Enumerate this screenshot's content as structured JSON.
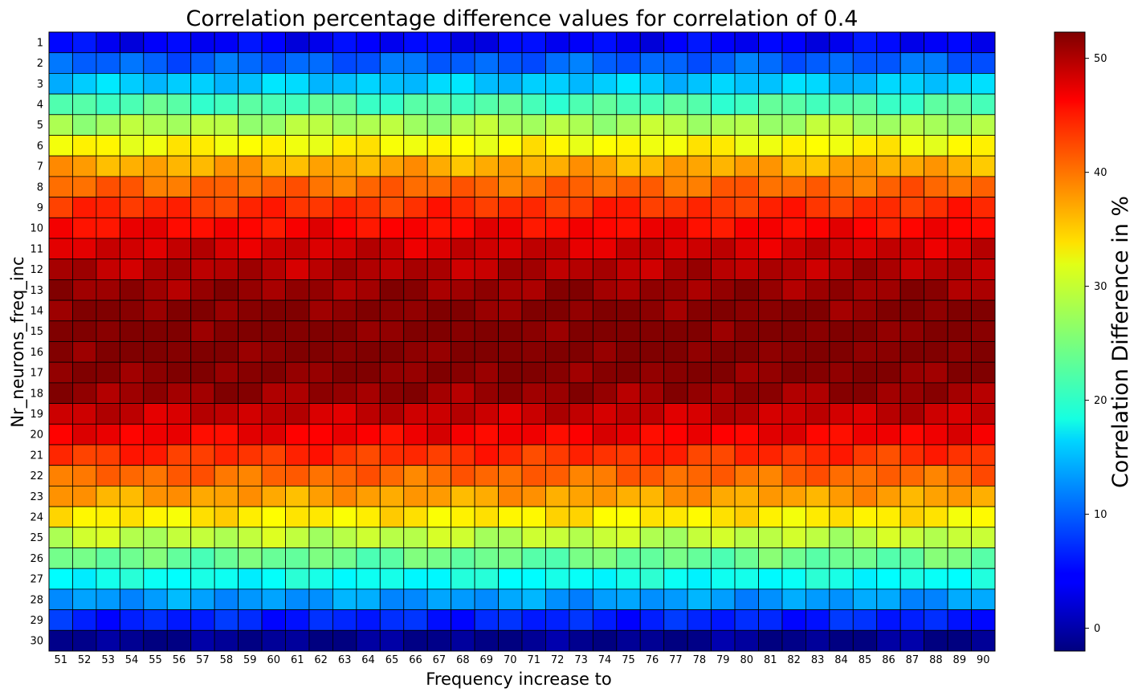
{
  "chart_data": {
    "type": "heatmap",
    "title": "Correlation percentage difference values for correlation of 0.4",
    "xlabel": "Frequency increase to",
    "ylabel": "Nr_neurons_freq_inc",
    "colorbar_label": "Correlation Difference in %",
    "colormap": "jet",
    "x": [
      51,
      52,
      53,
      54,
      55,
      56,
      57,
      58,
      59,
      60,
      61,
      62,
      63,
      64,
      65,
      66,
      67,
      68,
      69,
      70,
      71,
      72,
      73,
      74,
      75,
      76,
      77,
      78,
      79,
      80,
      81,
      82,
      83,
      84,
      85,
      86,
      87,
      88,
      89,
      90
    ],
    "y": [
      1,
      2,
      3,
      4,
      5,
      6,
      7,
      8,
      9,
      10,
      11,
      12,
      13,
      14,
      15,
      16,
      17,
      18,
      19,
      20,
      21,
      22,
      23,
      24,
      25,
      26,
      27,
      28,
      29,
      30
    ],
    "row_base": [
      4.5,
      10.0,
      15.5,
      22.5,
      27.5,
      32.0,
      36.5,
      40.0,
      43.0,
      45.5,
      48.0,
      49.5,
      51.0,
      52.0,
      52.5,
      52.5,
      52.0,
      51.0,
      48.5,
      46.0,
      43.0,
      40.0,
      37.0,
      33.0,
      28.5,
      24.0,
      19.0,
      13.0,
      6.5,
      -1.2
    ],
    "zlim": [
      -2,
      52.3
    ],
    "colorbar_ticks": [
      0,
      10,
      20,
      30,
      40,
      50
    ]
  }
}
